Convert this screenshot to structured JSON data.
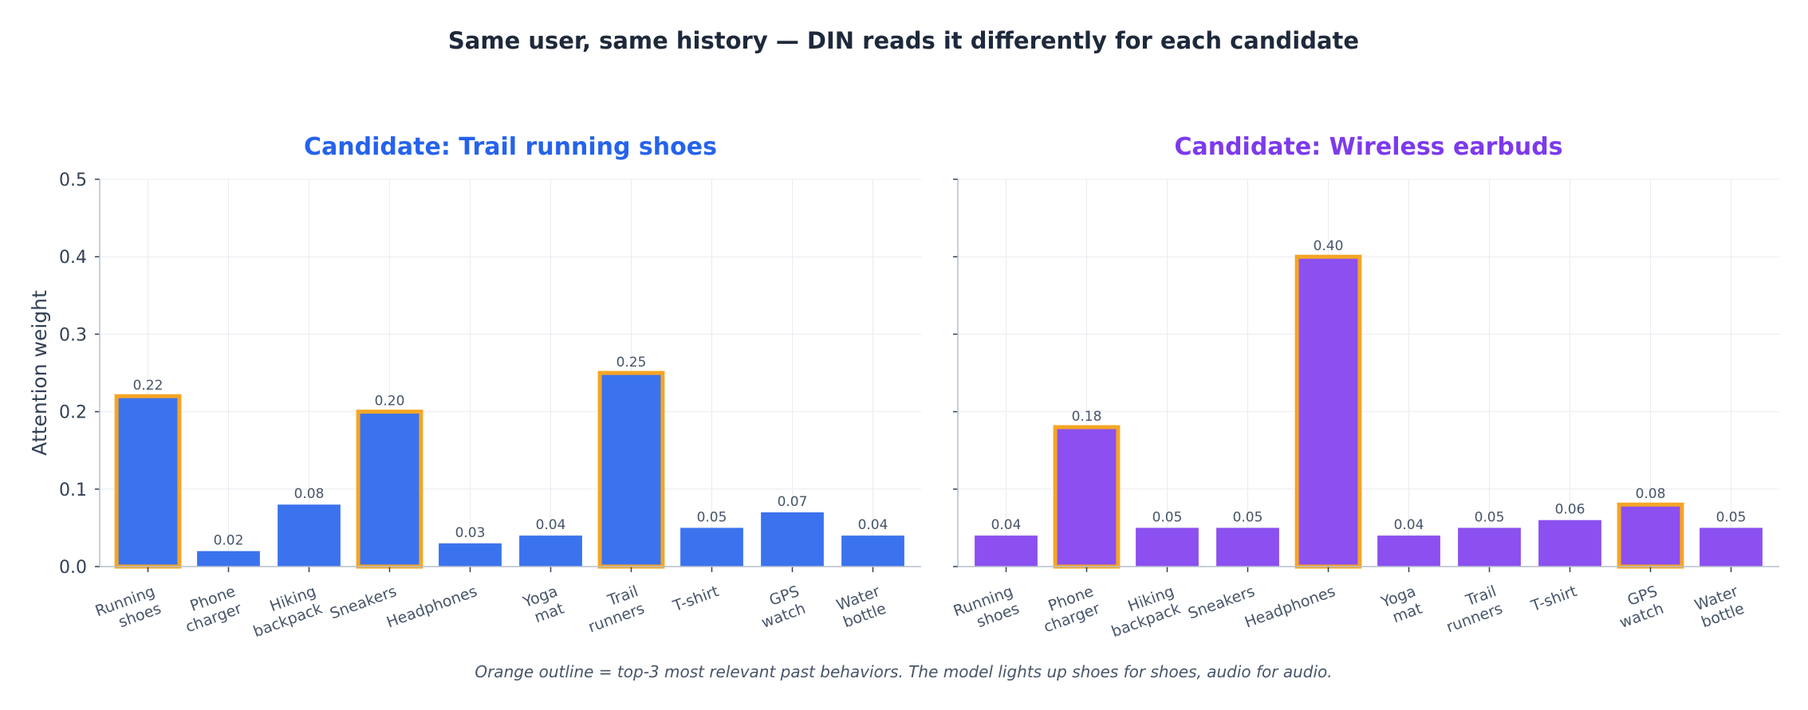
{
  "suptitle": "Same user, same history — DIN reads it differently for each candidate",
  "caption": "Orange outline = top-3 most relevant past behaviors. The model lights up shoes for shoes, audio for audio.",
  "highlight_color": "#f5a524",
  "chart_data": [
    {
      "type": "bar",
      "title": "Candidate: Trail running shoes",
      "title_color": "#2563eb",
      "bar_color": "#3b73ee",
      "ylabel": "Attention weight",
      "ylim": [
        0,
        0.5
      ],
      "yticks": [
        "0.0",
        "0.1",
        "0.2",
        "0.3",
        "0.4",
        "0.5"
      ],
      "ytick_values": [
        0,
        0.1,
        0.2,
        0.3,
        0.4,
        0.5
      ],
      "grid": true,
      "categories": [
        [
          "Running",
          "shoes"
        ],
        [
          "Phone",
          "charger"
        ],
        [
          "Hiking",
          "backpack"
        ],
        [
          "Sneakers"
        ],
        [
          "Headphones"
        ],
        [
          "Yoga",
          "mat"
        ],
        [
          "Trail",
          "runners"
        ],
        [
          "T-shirt"
        ],
        [
          "GPS",
          "watch"
        ],
        [
          "Water",
          "bottle"
        ]
      ],
      "values": [
        0.22,
        0.02,
        0.08,
        0.2,
        0.03,
        0.04,
        0.25,
        0.05,
        0.07,
        0.04
      ],
      "value_labels": [
        "0.22",
        "0.02",
        "0.08",
        "0.20",
        "0.03",
        "0.04",
        "0.25",
        "0.05",
        "0.07",
        "0.04"
      ],
      "highlighted": [
        0,
        3,
        6
      ]
    },
    {
      "type": "bar",
      "title": "Candidate: Wireless earbuds",
      "title_color": "#7c3aed",
      "bar_color": "#8b50ef",
      "ylabel": "",
      "ylim": [
        0,
        0.5
      ],
      "yticks": [],
      "ytick_values": [
        0,
        0.1,
        0.2,
        0.3,
        0.4,
        0.5
      ],
      "grid": true,
      "categories": [
        [
          "Running",
          "shoes"
        ],
        [
          "Phone",
          "charger"
        ],
        [
          "Hiking",
          "backpack"
        ],
        [
          "Sneakers"
        ],
        [
          "Headphones"
        ],
        [
          "Yoga",
          "mat"
        ],
        [
          "Trail",
          "runners"
        ],
        [
          "T-shirt"
        ],
        [
          "GPS",
          "watch"
        ],
        [
          "Water",
          "bottle"
        ]
      ],
      "values": [
        0.04,
        0.18,
        0.05,
        0.05,
        0.4,
        0.04,
        0.05,
        0.06,
        0.08,
        0.05
      ],
      "value_labels": [
        "0.04",
        "0.18",
        "0.05",
        "0.05",
        "0.40",
        "0.04",
        "0.05",
        "0.06",
        "0.08",
        "0.05"
      ],
      "highlighted": [
        1,
        4,
        8
      ]
    }
  ]
}
